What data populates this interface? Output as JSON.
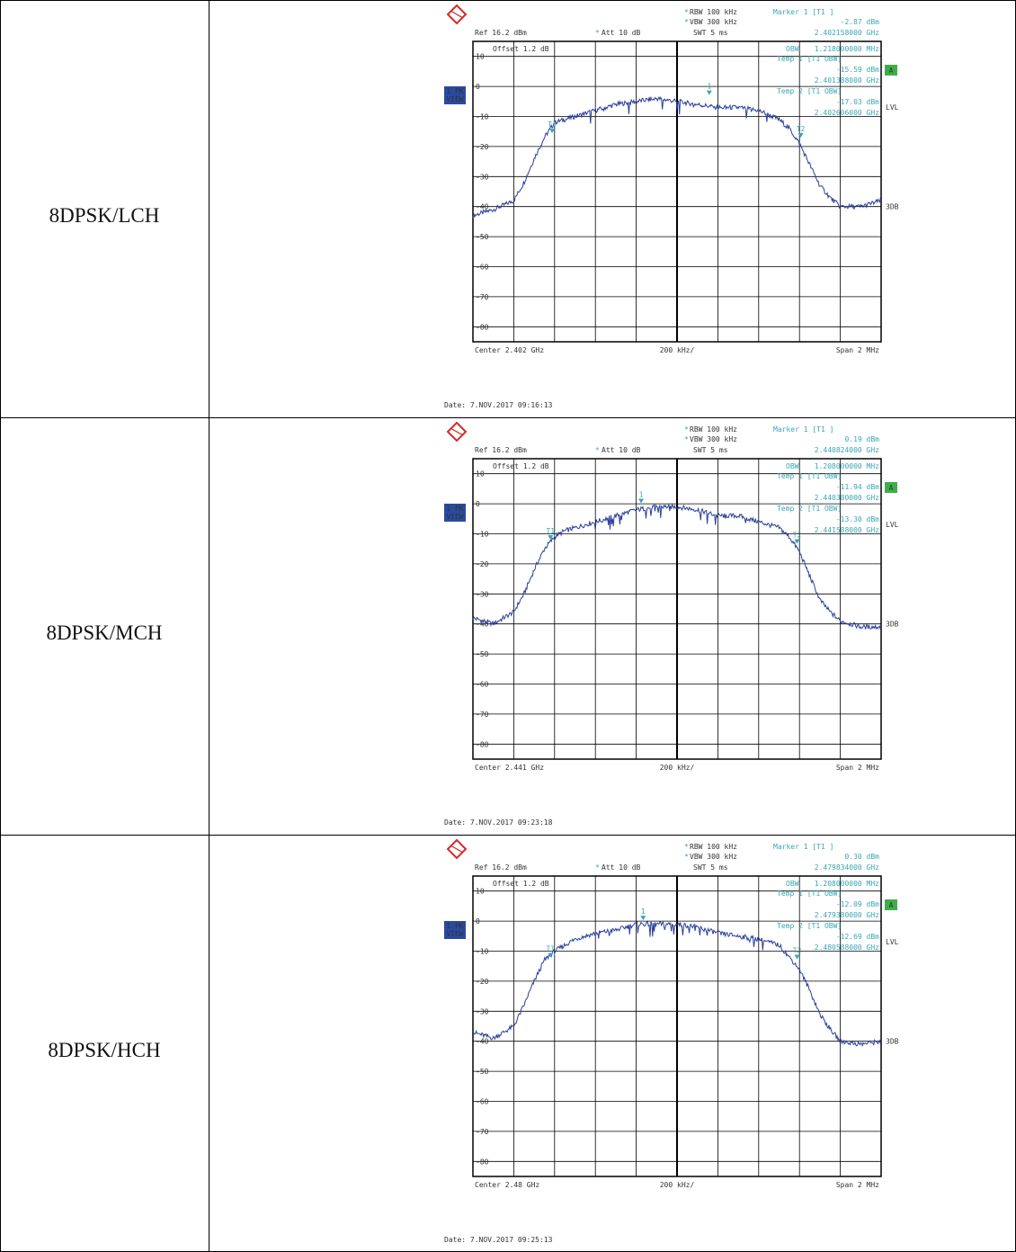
{
  "rows": [
    {
      "label": "8DPSK/LCH",
      "header": {
        "ref": "Ref  16.2 dBm",
        "att": "Att  10 dB",
        "rbw": "RBW 100 kHz",
        "vbw": "VBW 300 kHz",
        "swt": "SWT 5 ms",
        "offset": "Offset  1.2 dB",
        "marker_title": "Marker 1 [T1 ]",
        "marker_level": "-2.87 dBm",
        "marker_freq": "2.402158000 GHz",
        "obw": "1.218000000 MHz",
        "temp1_level": "-15.59 dBm",
        "temp1_freq": "2.401388000 GHz",
        "temp2_level": "-17.03 dBm",
        "temp2_freq": "2.402606000 GHz"
      },
      "center": "Center  2.402 GHz",
      "span": "Span  2 MHz",
      "date": "Date: 7.NOV.2017  09:16:13"
    },
    {
      "label": "8DPSK/MCH",
      "header": {
        "ref": "Ref  16.2 dBm",
        "att": "Att  10 dB",
        "rbw": "RBW 100 kHz",
        "vbw": "VBW 300 kHz",
        "swt": "SWT 5 ms",
        "offset": "Offset  1.2 dB",
        "marker_title": "Marker 1 [T1 ]",
        "marker_level": "0.19 dBm",
        "marker_freq": "2.440824000 GHz",
        "obw": "1.208000000 MHz",
        "temp1_level": "-11.94 dBm",
        "temp1_freq": "2.440380000 GHz",
        "temp2_level": "-13.30 dBm",
        "temp2_freq": "2.441588000 GHz"
      },
      "center": "Center  2.441 GHz",
      "span": "Span  2 MHz",
      "date": "Date: 7.NOV.2017  09:23:18"
    },
    {
      "label": "8DPSK/HCH",
      "header": {
        "ref": "Ref  16.2 dBm",
        "att": "Att  10 dB",
        "rbw": "RBW 100 kHz",
        "vbw": "VBW 300 kHz",
        "swt": "SWT 5 ms",
        "offset": "Offset  1.2 dB",
        "marker_title": "Marker 1 [T1 ]",
        "marker_level": "0.30 dBm",
        "marker_freq": "2.479834000 GHz",
        "obw": "1.208000000 MHz",
        "temp1_level": "-12.09 dBm",
        "temp1_freq": "2.479380000 GHz",
        "temp2_level": "-12.69 dBm",
        "temp2_freq": "2.480588000 GHz"
      },
      "center": "Center  2.48 GHz",
      "span": "Span  2 MHz",
      "date": "Date: 7.NOV.2017  09:25:13"
    }
  ],
  "static_labels": {
    "rbw_vbw_star": "*",
    "obw_label": "OBW",
    "temp1_label": "Temp 1 [T1 OBW]",
    "temp2_label": "Temp 2 [T1 OBW]",
    "div_label": "200 kHz/",
    "side_tag_1": "1 PK",
    "side_tag_2": "VIEW",
    "a_tag": "A",
    "lvl_tag": "LVL",
    "db3_tag": "3DB",
    "marker_1": "1",
    "marker_t1": "T1",
    "marker_t2": "T2"
  },
  "chart_data": [
    {
      "type": "line",
      "xlabel": "",
      "ylabel": "",
      "x_range_mhz": [
        -1,
        1
      ],
      "ylim": [
        -85,
        15
      ],
      "y_ticks": [
        10,
        0,
        -10,
        -20,
        -30,
        -40,
        -50,
        -60,
        -70,
        -80
      ],
      "grid": true,
      "series": [
        {
          "x_mhz": [
            -1.0,
            -0.9,
            -0.8,
            -0.75,
            -0.7,
            -0.65,
            -0.6,
            -0.55,
            -0.5,
            -0.4,
            -0.3,
            -0.2,
            -0.1,
            0.0,
            0.1,
            0.2,
            0.3,
            0.4,
            0.5,
            0.55,
            0.6,
            0.65,
            0.7,
            0.75,
            0.8,
            0.9,
            1.0
          ],
          "values_dbm": [
            -43,
            -41,
            -38,
            -32,
            -24,
            -17,
            -12,
            -11,
            -10,
            -8,
            -6,
            -5,
            -4,
            -5,
            -6,
            -7,
            -7,
            -8,
            -11,
            -14,
            -19,
            -26,
            -33,
            -37,
            -40,
            -40,
            -38
          ]
        }
      ],
      "markers": [
        {
          "label": "1",
          "x_mhz": 0.158,
          "value_dbm": -2.87
        },
        {
          "label": "T1",
          "x_mhz": -0.612,
          "value_dbm": -15.59
        },
        {
          "label": "T2",
          "x_mhz": 0.606,
          "value_dbm": -17.03
        }
      ]
    },
    {
      "type": "line",
      "xlabel": "",
      "ylabel": "",
      "x_range_mhz": [
        -1,
        1
      ],
      "ylim": [
        -85,
        15
      ],
      "y_ticks": [
        10,
        0,
        -10,
        -20,
        -30,
        -40,
        -50,
        -60,
        -70,
        -80
      ],
      "grid": true,
      "series": [
        {
          "x_mhz": [
            -1.0,
            -0.9,
            -0.8,
            -0.75,
            -0.7,
            -0.65,
            -0.6,
            -0.55,
            -0.5,
            -0.4,
            -0.3,
            -0.2,
            -0.1,
            0.0,
            0.1,
            0.2,
            0.3,
            0.4,
            0.5,
            0.55,
            0.6,
            0.65,
            0.7,
            0.75,
            0.8,
            0.9,
            1.0
          ],
          "values_dbm": [
            -38,
            -40,
            -36,
            -30,
            -22,
            -15,
            -11,
            -9,
            -8,
            -6,
            -4,
            -2,
            -1,
            -1,
            -2,
            -4,
            -4,
            -6,
            -8,
            -11,
            -16,
            -24,
            -32,
            -36,
            -39,
            -41,
            -41
          ]
        }
      ],
      "markers": [
        {
          "label": "1",
          "x_mhz": -0.176,
          "value_dbm": 0.19
        },
        {
          "label": "T1",
          "x_mhz": -0.62,
          "value_dbm": -11.94
        },
        {
          "label": "T2",
          "x_mhz": 0.588,
          "value_dbm": -13.3
        }
      ]
    },
    {
      "type": "line",
      "xlabel": "",
      "ylabel": "",
      "x_range_mhz": [
        -1,
        1
      ],
      "ylim": [
        -85,
        15
      ],
      "y_ticks": [
        10,
        0,
        -10,
        -20,
        -30,
        -40,
        -50,
        -60,
        -70,
        -80
      ],
      "grid": true,
      "series": [
        {
          "x_mhz": [
            -1.0,
            -0.9,
            -0.8,
            -0.75,
            -0.7,
            -0.65,
            -0.6,
            -0.55,
            -0.5,
            -0.4,
            -0.3,
            -0.2,
            -0.1,
            0.0,
            0.1,
            0.2,
            0.3,
            0.4,
            0.5,
            0.55,
            0.6,
            0.65,
            0.7,
            0.75,
            0.8,
            0.9,
            1.0
          ],
          "values_dbm": [
            -37,
            -39,
            -35,
            -28,
            -20,
            -13,
            -10,
            -8,
            -6,
            -4,
            -3,
            -1,
            -1,
            -1,
            -2,
            -4,
            -5,
            -6,
            -8,
            -12,
            -16,
            -23,
            -31,
            -36,
            -40,
            -41,
            -40
          ]
        }
      ],
      "markers": [
        {
          "label": "1",
          "x_mhz": -0.166,
          "value_dbm": 0.3
        },
        {
          "label": "T1",
          "x_mhz": -0.62,
          "value_dbm": -12.09
        },
        {
          "label": "T2",
          "x_mhz": 0.588,
          "value_dbm": -12.69
        }
      ]
    }
  ]
}
